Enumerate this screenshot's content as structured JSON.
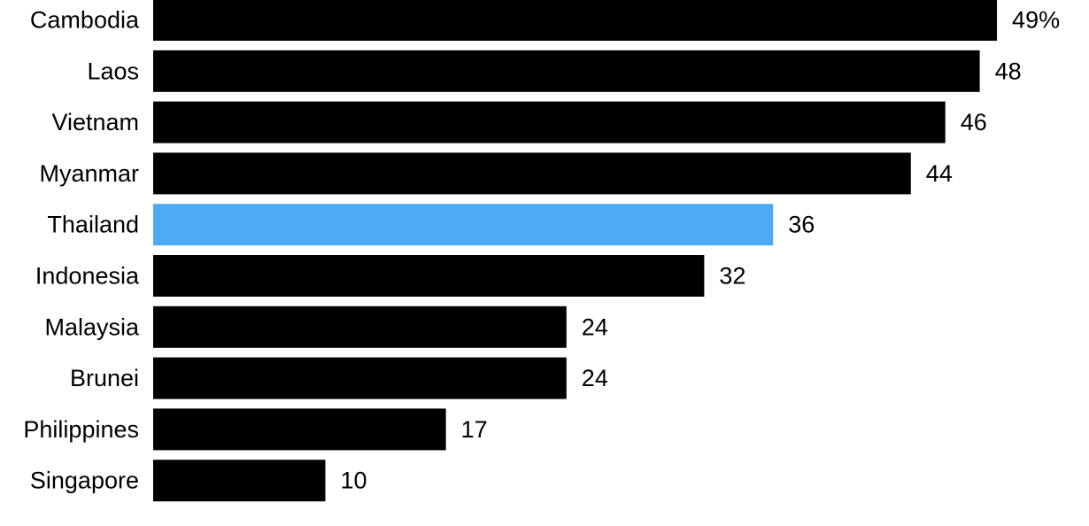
{
  "chart_data": {
    "type": "bar",
    "orientation": "horizontal",
    "categories": [
      "Cambodia",
      "Laos",
      "Vietnam",
      "Myanmar",
      "Thailand",
      "Indonesia",
      "Malaysia",
      "Brunei",
      "Philippines",
      "Singapore"
    ],
    "values": [
      49,
      48,
      46,
      44,
      36,
      32,
      24,
      24,
      17,
      10
    ],
    "value_labels": [
      "49%",
      "48",
      "46",
      "44",
      "36",
      "32",
      "24",
      "24",
      "17",
      "10"
    ],
    "highlight_category": "Thailand",
    "colors": {
      "bar": "#000000",
      "highlight": "#4DABF5"
    },
    "title": "",
    "xlabel": "",
    "ylabel": "",
    "xlim": [
      0,
      50
    ],
    "grid": false,
    "legend": "none"
  }
}
